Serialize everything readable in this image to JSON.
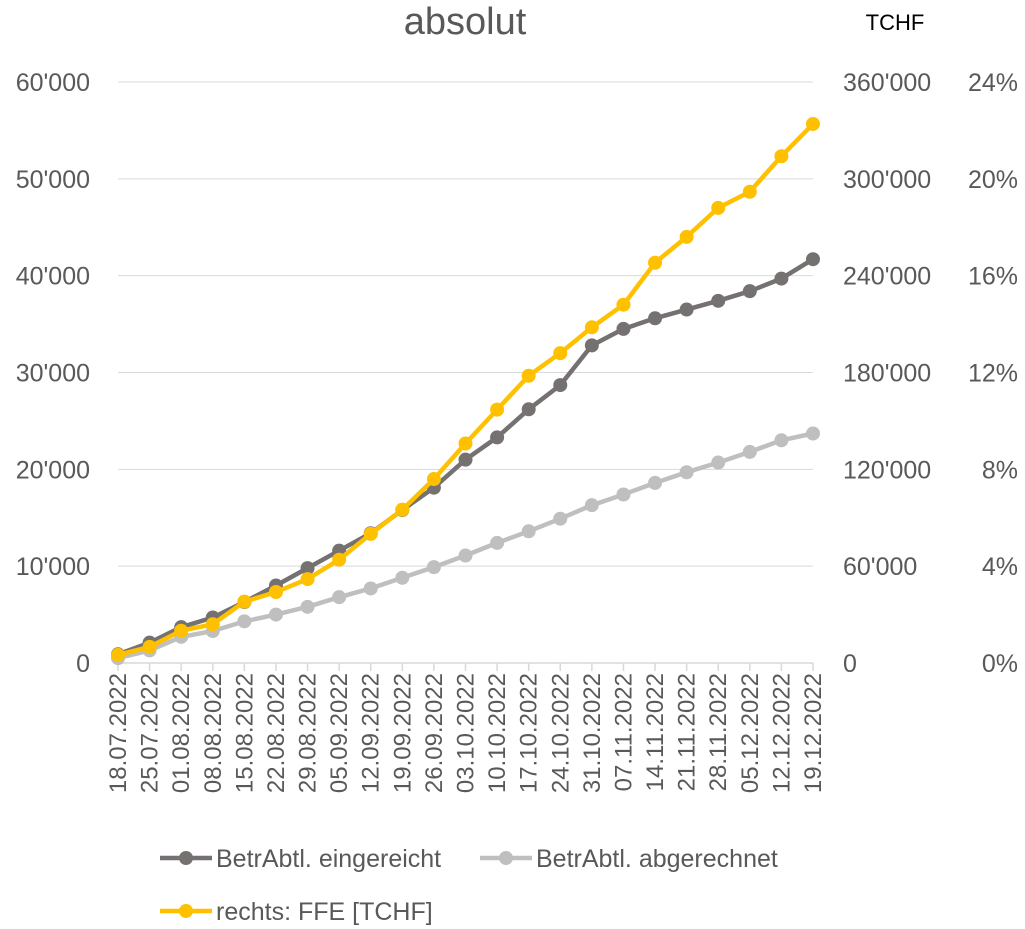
{
  "chart_data": {
    "type": "line",
    "title": "absolut",
    "unit_label": "TCHF",
    "categories": [
      "18.07.2022",
      "25.07.2022",
      "01.08.2022",
      "08.08.2022",
      "15.08.2022",
      "22.08.2022",
      "29.08.2022",
      "05.09.2022",
      "12.09.2022",
      "19.09.2022",
      "26.09.2022",
      "03.10.2022",
      "10.10.2022",
      "17.10.2022",
      "24.10.2022",
      "31.10.2022",
      "07.11.2022",
      "14.11.2022",
      "21.11.2022",
      "28.11.2022",
      "05.12.2022",
      "12.12.2022",
      "19.12.2022"
    ],
    "y_left": {
      "ylim": [
        0,
        60000
      ],
      "ticks": [
        0,
        10000,
        20000,
        30000,
        40000,
        50000,
        60000
      ],
      "tick_labels": [
        "0",
        "10'000",
        "20'000",
        "30'000",
        "40'000",
        "50'000",
        "60'000"
      ]
    },
    "y_right": {
      "ylim": [
        0,
        360000
      ],
      "ticks": [
        0,
        60000,
        120000,
        180000,
        240000,
        300000,
        360000
      ],
      "tick_labels": [
        "0",
        "60'000",
        "120'000",
        "180'000",
        "240'000",
        "300'000",
        "360'000"
      ]
    },
    "y_percent": {
      "ylim": [
        0,
        24
      ],
      "ticks": [
        0,
        4,
        8,
        12,
        16,
        20,
        24
      ],
      "tick_labels": [
        "0%",
        "4%",
        "8%",
        "12%",
        "16%",
        "20%",
        "24%"
      ]
    },
    "grid": true,
    "legend_position": "bottom",
    "series": [
      {
        "name": "BetrAbtl. eingereicht",
        "axis": "left",
        "color": "#767171",
        "values": [
          900,
          2100,
          3700,
          4700,
          6300,
          8000,
          9800,
          11600,
          13400,
          15800,
          18100,
          21000,
          23300,
          26200,
          28700,
          32800,
          34500,
          35600,
          36500,
          37400,
          38400,
          39700,
          41700
        ]
      },
      {
        "name": "BetrAbtl. abgerechnet",
        "axis": "left",
        "color": "#BFBFBF",
        "values": [
          500,
          1300,
          2700,
          3300,
          4300,
          5000,
          5800,
          6800,
          7700,
          8800,
          9900,
          11100,
          12400,
          13600,
          14900,
          16300,
          17400,
          18600,
          19700,
          20700,
          21800,
          23000,
          23700
        ]
      },
      {
        "name": "rechts: FFE [TCHF]",
        "axis": "right",
        "color": "#FFC000",
        "values": [
          5000,
          10000,
          20000,
          24000,
          38000,
          44000,
          52000,
          64000,
          80000,
          95000,
          114000,
          136000,
          157000,
          178000,
          192000,
          208000,
          222000,
          248000,
          264000,
          282000,
          292000,
          314000,
          334000
        ]
      }
    ]
  }
}
